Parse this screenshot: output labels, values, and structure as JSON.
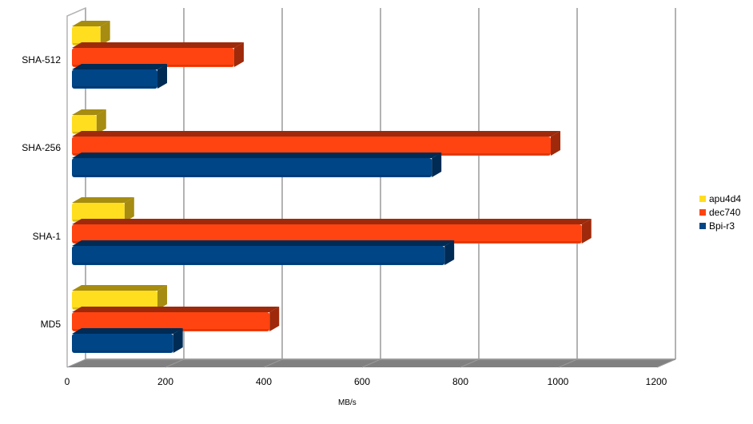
{
  "chart_data": {
    "type": "bar",
    "orientation": "horizontal",
    "style": "3d",
    "title": "",
    "xlabel": "MB/s",
    "ylabel": "",
    "xlim": [
      0,
      1200
    ],
    "x_ticks": [
      0,
      200,
      400,
      600,
      800,
      1000,
      1200
    ],
    "grid": true,
    "legend_position": "right",
    "categories": [
      "SHA-512",
      "SHA-256",
      "SHA-1",
      "MD5"
    ],
    "series": [
      {
        "name": "apu4d4",
        "color": "#ffde20",
        "side": "#a68c10",
        "values": [
          58,
          50,
          107,
          174
        ]
      },
      {
        "name": "dec740",
        "color": "#ff4411",
        "side": "#9e2a0b",
        "values": [
          330,
          974,
          1037,
          402
        ]
      },
      {
        "name": "Bpi-r3",
        "color": "#004586",
        "side": "#002b54",
        "values": [
          174,
          732,
          758,
          206
        ]
      }
    ]
  },
  "labels": {
    "x_ticks": [
      "0",
      "200",
      "400",
      "600",
      "800",
      "1000",
      "1200"
    ],
    "categories": [
      "SHA-512",
      "SHA-256",
      "SHA-1",
      "MD5"
    ],
    "xlabel": "MB/s",
    "legend": [
      "apu4d4",
      "dec740",
      "Bpi-r3"
    ]
  },
  "colors": {
    "grid": "#b3b3b3",
    "floor": "#808080",
    "floor_top": "#999999"
  }
}
